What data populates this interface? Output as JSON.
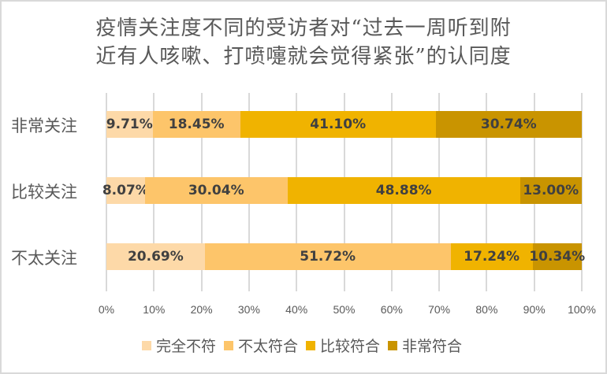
{
  "chart_data": {
    "type": "bar",
    "orientation": "horizontal",
    "stacked": "percent",
    "title": "疫情关注度不同的受访者对“过去一周听到附近有人咳嗽、打喷嚏就会觉得紧张”的认同度",
    "title_lines": [
      "疫情关注度不同的受访者对“过去一周听到附",
      "近有人咳嗽、打喷嚏就会觉得紧张”的认同度"
    ],
    "categories": [
      "非常关注",
      "比较关注",
      "不太关注"
    ],
    "series": [
      {
        "name": "完全不符",
        "color": "#fdd9a8",
        "values": [
          9.71,
          8.07,
          20.69
        ],
        "labels": [
          "9.71%",
          "8.07%",
          "20.69%"
        ]
      },
      {
        "name": "不太符合",
        "color": "#fdc56a",
        "values": [
          18.45,
          30.04,
          51.72
        ],
        "labels": [
          "18.45%",
          "30.04%",
          "51.72%"
        ]
      },
      {
        "name": "比较符合",
        "color": "#f0b300",
        "values": [
          41.1,
          48.88,
          17.24
        ],
        "labels": [
          "41.10%",
          "48.88%",
          "17.24%"
        ]
      },
      {
        "name": "非常符合",
        "color": "#c99400",
        "values": [
          30.74,
          13.0,
          10.34
        ],
        "labels": [
          "30.74%",
          "13.00%",
          "10.34%"
        ]
      }
    ],
    "xlabel": "",
    "ylabel": "",
    "xlim": [
      0,
      100
    ],
    "x_ticks": [
      "0%",
      "10%",
      "20%",
      "30%",
      "40%",
      "50%",
      "60%",
      "70%",
      "80%",
      "90%",
      "100%"
    ],
    "grid": true,
    "legend_position": "bottom"
  }
}
